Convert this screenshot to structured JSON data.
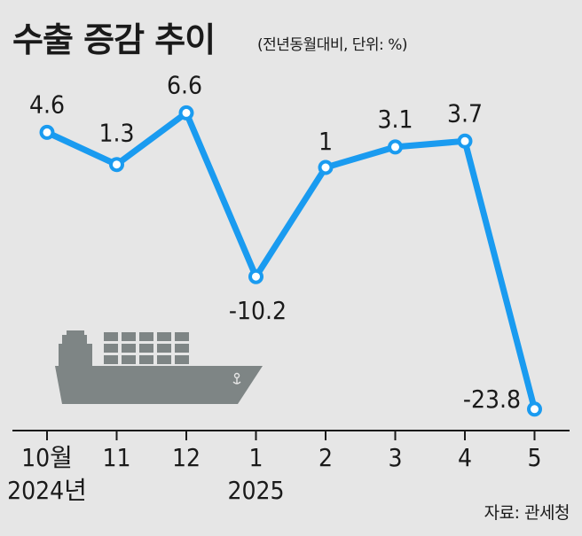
{
  "title": "수출 증감 추이",
  "subtitle": "(전년동월대비, 단위: %)",
  "source": "자료: 관세청",
  "colors": {
    "line": "#1a9bf0",
    "background": "#e6e6e6",
    "ship": "#7e8585",
    "text": "#1a1a1a"
  },
  "icons": {
    "ship": "cargo-ship-icon"
  },
  "chart_data": {
    "type": "line",
    "categories": [
      "10월",
      "11",
      "12",
      "1",
      "2",
      "3",
      "4",
      "5"
    ],
    "year_labels": [
      "2024년",
      "",
      "",
      "2025",
      "",
      "",
      "",
      ""
    ],
    "data_labels": [
      "4.6",
      "1.3",
      "6.6",
      "-10.2",
      "1",
      "3.1",
      "3.7",
      "-23.8"
    ],
    "series": [
      {
        "values": [
          4.6,
          1.3,
          6.6,
          -10.2,
          1.0,
          3.1,
          3.7,
          -23.8
        ]
      }
    ],
    "ylim": [
      -26,
      10
    ],
    "grid": false,
    "legend": "none"
  }
}
